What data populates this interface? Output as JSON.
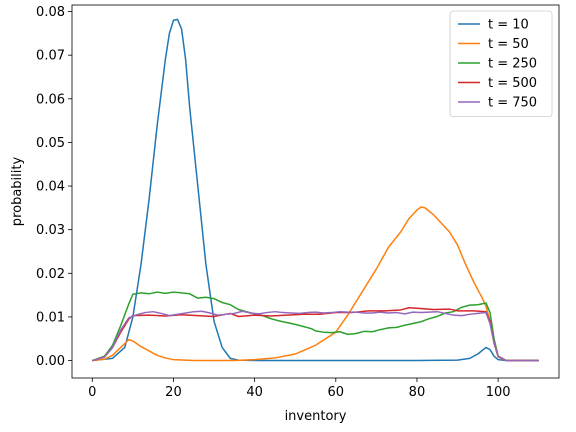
{
  "chart_data": {
    "type": "line",
    "title": "",
    "xlabel": "inventory",
    "ylabel": "probability",
    "xlim": [
      -5,
      115
    ],
    "ylim": [
      -0.004,
      0.0815
    ],
    "x_ticks": [
      0,
      20,
      40,
      60,
      80,
      100
    ],
    "y_ticks": [
      0.0,
      0.01,
      0.02,
      0.03,
      0.04,
      0.05,
      0.06,
      0.07,
      0.08
    ],
    "y_tick_labels": [
      "0.00",
      "0.01",
      "0.02",
      "0.03",
      "0.04",
      "0.05",
      "0.06",
      "0.07",
      "0.08"
    ],
    "grid": false,
    "legend_position": "top-right",
    "series": [
      {
        "name": "t = 10",
        "color": "#1f77b4",
        "points": [
          [
            0,
            0
          ],
          [
            5,
            0.0005
          ],
          [
            8,
            0.003
          ],
          [
            10,
            0.01
          ],
          [
            12,
            0.022
          ],
          [
            14,
            0.037
          ],
          [
            16,
            0.054
          ],
          [
            18,
            0.069
          ],
          [
            19,
            0.075
          ],
          [
            20,
            0.078
          ],
          [
            21,
            0.0782
          ],
          [
            22,
            0.076
          ],
          [
            23,
            0.069
          ],
          [
            24,
            0.058
          ],
          [
            26,
            0.04
          ],
          [
            28,
            0.022
          ],
          [
            30,
            0.009
          ],
          [
            32,
            0.003
          ],
          [
            34,
            0.0005
          ],
          [
            36,
            0.0001
          ],
          [
            40,
            0
          ],
          [
            60,
            0
          ],
          [
            80,
            0
          ],
          [
            90,
            0.0001
          ],
          [
            93,
            0.0005
          ],
          [
            95,
            0.0015
          ],
          [
            97,
            0.003
          ],
          [
            98,
            0.0025
          ],
          [
            99,
            0.001
          ],
          [
            100,
            0.0002
          ],
          [
            102,
            0
          ],
          [
            110,
            0
          ]
        ]
      },
      {
        "name": "t = 50",
        "color": "#ff7f0e",
        "points": [
          [
            0,
            0
          ],
          [
            3,
            0.0003
          ],
          [
            5,
            0.0012
          ],
          [
            7,
            0.003
          ],
          [
            9,
            0.0048
          ],
          [
            10,
            0.0045
          ],
          [
            12,
            0.0032
          ],
          [
            14,
            0.0022
          ],
          [
            16,
            0.0012
          ],
          [
            18,
            0.0006
          ],
          [
            20,
            0.0002
          ],
          [
            25,
            0
          ],
          [
            35,
            0
          ],
          [
            40,
            0.0002
          ],
          [
            45,
            0.0006
          ],
          [
            50,
            0.0015
          ],
          [
            55,
            0.0035
          ],
          [
            60,
            0.0065
          ],
          [
            63,
            0.0105
          ],
          [
            66,
            0.015
          ],
          [
            70,
            0.021
          ],
          [
            73,
            0.026
          ],
          [
            76,
            0.0295
          ],
          [
            78,
            0.0325
          ],
          [
            80,
            0.0345
          ],
          [
            81,
            0.0352
          ],
          [
            82,
            0.035
          ],
          [
            84,
            0.0335
          ],
          [
            86,
            0.0315
          ],
          [
            88,
            0.0295
          ],
          [
            90,
            0.0265
          ],
          [
            92,
            0.022
          ],
          [
            94,
            0.018
          ],
          [
            96,
            0.0145
          ],
          [
            97,
            0.0125
          ],
          [
            98,
            0.009
          ],
          [
            99,
            0.004
          ],
          [
            100,
            0.0008
          ],
          [
            102,
            0
          ],
          [
            110,
            0
          ]
        ]
      },
      {
        "name": "t = 250",
        "color": "#2ca02c",
        "points": [
          [
            0,
            0
          ],
          [
            3,
            0.001
          ],
          [
            5,
            0.0035
          ],
          [
            7,
            0.008
          ],
          [
            9,
            0.013
          ],
          [
            10,
            0.0152
          ],
          [
            12,
            0.0155
          ],
          [
            14,
            0.0153
          ],
          [
            16,
            0.0157
          ],
          [
            18,
            0.0154
          ],
          [
            20,
            0.0157
          ],
          [
            24,
            0.0153
          ],
          [
            26,
            0.0143
          ],
          [
            28,
            0.0145
          ],
          [
            30,
            0.0142
          ],
          [
            32,
            0.0133
          ],
          [
            34,
            0.0128
          ],
          [
            36,
            0.0117
          ],
          [
            38,
            0.0112
          ],
          [
            40,
            0.0107
          ],
          [
            42,
            0.0103
          ],
          [
            44,
            0.0096
          ],
          [
            46,
            0.0091
          ],
          [
            48,
            0.0087
          ],
          [
            50,
            0.0083
          ],
          [
            52,
            0.0078
          ],
          [
            54,
            0.0073
          ],
          [
            55,
            0.0068
          ],
          [
            57,
            0.0065
          ],
          [
            59,
            0.0064
          ],
          [
            61,
            0.0066
          ],
          [
            63,
            0.006
          ],
          [
            65,
            0.0062
          ],
          [
            67,
            0.0067
          ],
          [
            69,
            0.0066
          ],
          [
            71,
            0.0071
          ],
          [
            73,
            0.0075
          ],
          [
            75,
            0.0076
          ],
          [
            77,
            0.0081
          ],
          [
            79,
            0.0085
          ],
          [
            81,
            0.0089
          ],
          [
            83,
            0.0096
          ],
          [
            85,
            0.0101
          ],
          [
            87,
            0.0109
          ],
          [
            89,
            0.0112
          ],
          [
            91,
            0.0122
          ],
          [
            93,
            0.0127
          ],
          [
            95,
            0.0128
          ],
          [
            97,
            0.0132
          ],
          [
            98,
            0.011
          ],
          [
            99,
            0.005
          ],
          [
            100,
            0.001
          ],
          [
            102,
            0
          ],
          [
            110,
            0
          ]
        ]
      },
      {
        "name": "t = 500",
        "color": "#d62728",
        "points": [
          [
            0,
            0
          ],
          [
            3,
            0.0008
          ],
          [
            5,
            0.003
          ],
          [
            7,
            0.0065
          ],
          [
            9,
            0.0095
          ],
          [
            10,
            0.0103
          ],
          [
            14,
            0.0104
          ],
          [
            18,
            0.0102
          ],
          [
            22,
            0.0105
          ],
          [
            26,
            0.0103
          ],
          [
            30,
            0.0101
          ],
          [
            34,
            0.0108
          ],
          [
            36,
            0.0101
          ],
          [
            40,
            0.0104
          ],
          [
            44,
            0.0102
          ],
          [
            48,
            0.0104
          ],
          [
            52,
            0.0106
          ],
          [
            56,
            0.0106
          ],
          [
            60,
            0.011
          ],
          [
            64,
            0.011
          ],
          [
            68,
            0.0114
          ],
          [
            72,
            0.0114
          ],
          [
            76,
            0.0116
          ],
          [
            78,
            0.0121
          ],
          [
            80,
            0.012
          ],
          [
            84,
            0.0117
          ],
          [
            88,
            0.0118
          ],
          [
            90,
            0.0114
          ],
          [
            94,
            0.0114
          ],
          [
            97,
            0.0112
          ],
          [
            98,
            0.009
          ],
          [
            99,
            0.004
          ],
          [
            100,
            0.001
          ],
          [
            102,
            0
          ],
          [
            110,
            0
          ]
        ]
      },
      {
        "name": "t = 750",
        "color": "#9467bd",
        "points": [
          [
            0,
            0
          ],
          [
            3,
            0.0008
          ],
          [
            5,
            0.003
          ],
          [
            7,
            0.007
          ],
          [
            9,
            0.0098
          ],
          [
            11,
            0.0105
          ],
          [
            13,
            0.011
          ],
          [
            15,
            0.0112
          ],
          [
            17,
            0.0108
          ],
          [
            19,
            0.0103
          ],
          [
            21,
            0.0106
          ],
          [
            23,
            0.0109
          ],
          [
            25,
            0.0112
          ],
          [
            27,
            0.0113
          ],
          [
            29,
            0.0109
          ],
          [
            31,
            0.0104
          ],
          [
            33,
            0.0106
          ],
          [
            35,
            0.0108
          ],
          [
            37,
            0.0113
          ],
          [
            39,
            0.0109
          ],
          [
            41,
            0.0107
          ],
          [
            43,
            0.011
          ],
          [
            45,
            0.0112
          ],
          [
            47,
            0.011
          ],
          [
            49,
            0.0109
          ],
          [
            51,
            0.0108
          ],
          [
            53,
            0.011
          ],
          [
            55,
            0.0111
          ],
          [
            57,
            0.0109
          ],
          [
            59,
            0.011
          ],
          [
            61,
            0.0112
          ],
          [
            63,
            0.0111
          ],
          [
            65,
            0.0111
          ],
          [
            67,
            0.0109
          ],
          [
            69,
            0.0109
          ],
          [
            71,
            0.0111
          ],
          [
            73,
            0.0109
          ],
          [
            75,
            0.011
          ],
          [
            77,
            0.0107
          ],
          [
            79,
            0.0111
          ],
          [
            81,
            0.011
          ],
          [
            83,
            0.0111
          ],
          [
            85,
            0.0112
          ],
          [
            87,
            0.0108
          ],
          [
            89,
            0.0104
          ],
          [
            91,
            0.0103
          ],
          [
            93,
            0.0106
          ],
          [
            95,
            0.0108
          ],
          [
            97,
            0.011
          ],
          [
            98,
            0.0085
          ],
          [
            99,
            0.004
          ],
          [
            100,
            0.001
          ],
          [
            102,
            0
          ],
          [
            110,
            0
          ]
        ]
      }
    ]
  }
}
